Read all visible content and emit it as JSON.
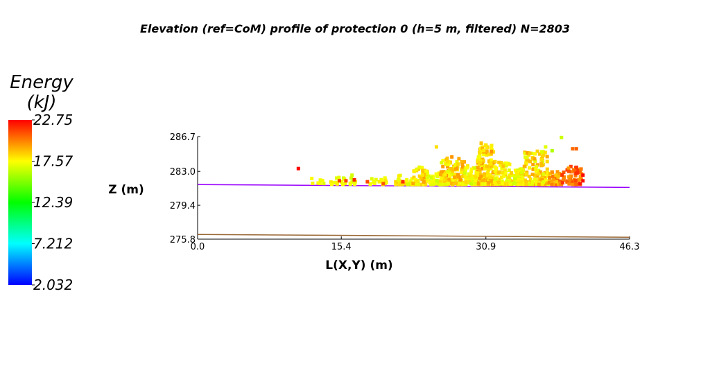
{
  "chart_data": {
    "type": "scatter",
    "title": "Elevation (ref=CoM) profile of protection 0 (h=5 m, filtered) N=2803",
    "xlabel": "L(X,Y) (m)",
    "ylabel": "Z (m)",
    "xlim": [
      0.0,
      46.3
    ],
    "ylim": [
      275.8,
      286.7
    ],
    "x_ticks": [
      "0.0",
      "15.4",
      "30.9",
      "46.3"
    ],
    "y_ticks": [
      "275.8",
      "279.4",
      "283.0",
      "286.7"
    ],
    "grid": false,
    "colorbar": {
      "title_line1": "Energy",
      "title_line2": "(kJ)",
      "range": [
        2.032,
        22.75
      ],
      "ticks": [
        "22.75",
        "17.57",
        "12.39",
        "7.212",
        "2.032"
      ],
      "colors": [
        "#0000ff",
        "#00ffff",
        "#00ff00",
        "#ffff00",
        "#ff0000"
      ]
    },
    "lines": [
      {
        "color": "#9900ff",
        "x": [
          0.0,
          46.3
        ],
        "y": [
          281.6,
          281.3
        ]
      },
      {
        "color": "#996633",
        "x": [
          0.0,
          46.3
        ],
        "y": [
          276.3,
          276.0
        ]
      }
    ],
    "clusters": [
      {
        "x0": 12.0,
        "x1": 13.4,
        "y0": 281.7,
        "y1": 282.4,
        "n": 6,
        "e0": 16.8,
        "e1": 18.0
      },
      {
        "x0": 13.5,
        "x1": 17.0,
        "y0": 281.6,
        "y1": 283.0,
        "n": 24,
        "e0": 16.5,
        "e1": 18.2
      },
      {
        "x0": 18.5,
        "x1": 20.5,
        "y0": 281.6,
        "y1": 282.3,
        "n": 16,
        "e0": 16.8,
        "e1": 18.0
      },
      {
        "x0": 21.0,
        "x1": 23.0,
        "y0": 281.6,
        "y1": 282.6,
        "n": 30,
        "e0": 16.5,
        "e1": 18.5
      },
      {
        "x0": 23.0,
        "x1": 24.6,
        "y0": 281.6,
        "y1": 283.8,
        "n": 60,
        "e0": 17.0,
        "e1": 19.5
      },
      {
        "x0": 24.6,
        "x1": 26.0,
        "y0": 281.6,
        "y1": 282.9,
        "n": 30,
        "e0": 16.5,
        "e1": 18.0
      },
      {
        "x0": 26.0,
        "x1": 28.6,
        "y0": 281.6,
        "y1": 284.6,
        "n": 120,
        "e0": 16.8,
        "e1": 19.8
      },
      {
        "x0": 28.6,
        "x1": 30.0,
        "y0": 281.6,
        "y1": 283.6,
        "n": 60,
        "e0": 16.5,
        "e1": 18.5
      },
      {
        "x0": 30.0,
        "x1": 31.8,
        "y0": 281.6,
        "y1": 285.9,
        "n": 170,
        "e0": 17.2,
        "e1": 19.8
      },
      {
        "x0": 31.8,
        "x1": 33.5,
        "y0": 281.6,
        "y1": 284.1,
        "n": 80,
        "e0": 16.8,
        "e1": 19.0
      },
      {
        "x0": 33.5,
        "x1": 35.0,
        "y0": 281.6,
        "y1": 283.3,
        "n": 70,
        "e0": 16.5,
        "e1": 18.5
      },
      {
        "x0": 35.0,
        "x1": 37.6,
        "y0": 281.6,
        "y1": 285.2,
        "n": 130,
        "e0": 16.8,
        "e1": 19.5
      },
      {
        "x0": 37.6,
        "x1": 39.0,
        "y0": 281.6,
        "y1": 283.0,
        "n": 40,
        "e0": 18.5,
        "e1": 20.8
      },
      {
        "x0": 39.0,
        "x1": 41.2,
        "y0": 281.6,
        "y1": 283.6,
        "n": 50,
        "e0": 19.5,
        "e1": 21.8
      }
    ],
    "points": [
      {
        "x": 10.8,
        "y": 283.3,
        "e": 22.7
      },
      {
        "x": 39.0,
        "y": 286.6,
        "e": 16.5
      },
      {
        "x": 38.0,
        "y": 285.2,
        "e": 16.0
      },
      {
        "x": 37.3,
        "y": 285.6,
        "e": 17.0
      },
      {
        "x": 40.6,
        "y": 285.4,
        "e": 20.8
      },
      {
        "x": 40.2,
        "y": 285.4,
        "e": 20.6
      },
      {
        "x": 25.6,
        "y": 285.6,
        "e": 18.2
      },
      {
        "x": 30.4,
        "y": 286.0,
        "e": 18.8
      },
      {
        "x": 16.8,
        "y": 282.1,
        "e": 22.0
      },
      {
        "x": 15.9,
        "y": 282.0,
        "e": 21.5
      },
      {
        "x": 22.0,
        "y": 281.9,
        "e": 21.8
      },
      {
        "x": 41.3,
        "y": 282.6,
        "e": 22.6
      },
      {
        "x": 41.3,
        "y": 282.0,
        "e": 22.5
      },
      {
        "x": 40.6,
        "y": 282.8,
        "e": 21.8
      },
      {
        "x": 39.8,
        "y": 283.0,
        "e": 21.2
      },
      {
        "x": 41.0,
        "y": 281.7,
        "e": 22.2
      },
      {
        "x": 18.2,
        "y": 281.9,
        "e": 21.3
      },
      {
        "x": 15.2,
        "y": 282.0,
        "e": 21.6
      },
      {
        "x": 19.9,
        "y": 281.7,
        "e": 21.0
      }
    ]
  }
}
